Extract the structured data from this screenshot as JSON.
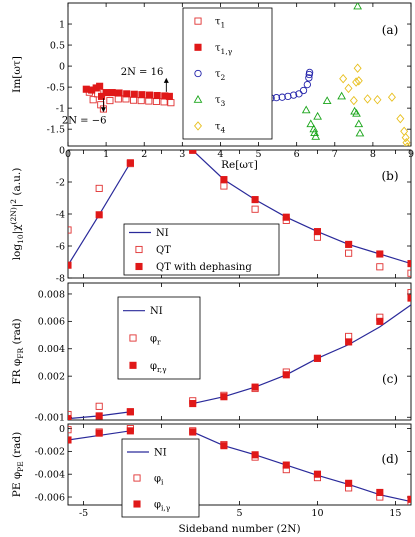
{
  "chart_data": [
    {
      "id": "a",
      "type": "scatter",
      "panel_label": "(a)",
      "xlabel": "Re[ωτ]",
      "ylabel": "Im[ωτ]",
      "xlim": [
        0,
        9
      ],
      "ylim": [
        -1.9,
        1.5
      ],
      "xticks": [
        0,
        1,
        2,
        3,
        4,
        5,
        6,
        7,
        8,
        9
      ],
      "xtick_labels": [
        "0",
        "1",
        "2",
        "3",
        "4",
        "5",
        "6",
        "7",
        "8",
        "9"
      ],
      "yticks": [
        -1.5,
        -1,
        -0.5,
        0,
        0.5,
        1
      ],
      "ytick_labels": [
        "-1.5",
        "-1",
        "-0.5",
        "0",
        "0.5",
        "1"
      ],
      "legend_position": "top-center",
      "annotations": [
        {
          "text": "2N = 16",
          "x": 2.58,
          "y": -0.28,
          "arrow": "up"
        },
        {
          "text": "2N = −6",
          "x": 0.93,
          "y": -1.05,
          "arrow": "down"
        }
      ],
      "series": [
        {
          "name": "τ1",
          "marker": "square-open",
          "color": "#e03030",
          "points": [
            [
              0.56,
              -0.62
            ],
            [
              0.66,
              -0.8
            ],
            [
              0.78,
              -0.66
            ],
            [
              0.86,
              -0.92
            ],
            [
              0.93,
              -1.02
            ],
            [
              1.1,
              -0.82
            ],
            [
              1.32,
              -0.78
            ],
            [
              1.52,
              -0.78
            ],
            [
              1.72,
              -0.81
            ],
            [
              1.92,
              -0.82
            ],
            [
              2.12,
              -0.83
            ],
            [
              2.32,
              -0.84
            ],
            [
              2.52,
              -0.85
            ],
            [
              2.7,
              -0.87
            ]
          ]
        },
        {
          "name": "τ1,γ",
          "marker": "square-filled",
          "color": "#e01818",
          "points": [
            [
              0.48,
              -0.55
            ],
            [
              0.62,
              -0.57
            ],
            [
              0.74,
              -0.52
            ],
            [
              0.83,
              -0.48
            ],
            [
              0.88,
              -0.72
            ],
            [
              1.0,
              -0.63
            ],
            [
              1.16,
              -0.63
            ],
            [
              1.34,
              -0.64
            ],
            [
              1.54,
              -0.66
            ],
            [
              1.74,
              -0.67
            ],
            [
              1.94,
              -0.68
            ],
            [
              2.14,
              -0.69
            ],
            [
              2.34,
              -0.7
            ],
            [
              2.54,
              -0.71
            ],
            [
              2.66,
              -0.72
            ]
          ]
        },
        {
          "name": "τ2",
          "marker": "circle-open",
          "color": "#2222aa",
          "points": [
            [
              5.33,
              -0.76
            ],
            [
              5.47,
              -0.75
            ],
            [
              5.62,
              -0.74
            ],
            [
              5.77,
              -0.72
            ],
            [
              5.92,
              -0.69
            ],
            [
              6.06,
              -0.66
            ],
            [
              6.18,
              -0.58
            ],
            [
              6.28,
              -0.44
            ],
            [
              6.32,
              -0.28
            ],
            [
              6.33,
              -0.2
            ],
            [
              6.34,
              -0.15
            ]
          ]
        },
        {
          "name": "τ3",
          "marker": "triangle-open",
          "color": "#1aa51a",
          "points": [
            [
              6.25,
              -1.05
            ],
            [
              6.37,
              -1.38
            ],
            [
              6.45,
              -1.5
            ],
            [
              6.47,
              -1.59
            ],
            [
              6.5,
              -1.68
            ],
            [
              6.55,
              -1.2
            ],
            [
              6.8,
              -0.83
            ],
            [
              7.18,
              -0.72
            ],
            [
              7.52,
              -1.08
            ],
            [
              7.57,
              -1.13
            ],
            [
              7.63,
              -1.38
            ],
            [
              7.66,
              -1.6
            ],
            [
              7.6,
              1.42
            ]
          ]
        },
        {
          "name": "τ4",
          "marker": "diamond-open",
          "color": "#e8c020",
          "points": [
            [
              7.22,
              -0.3
            ],
            [
              7.36,
              -0.53
            ],
            [
              7.5,
              -0.82
            ],
            [
              7.56,
              -0.38
            ],
            [
              7.6,
              -0.05
            ],
            [
              7.63,
              -0.35
            ],
            [
              7.86,
              -0.78
            ],
            [
              8.12,
              -0.8
            ],
            [
              8.5,
              -0.74
            ],
            [
              8.72,
              -1.25
            ],
            [
              8.82,
              -1.55
            ],
            [
              8.86,
              -1.7
            ],
            [
              8.88,
              -1.82
            ],
            [
              8.9,
              -1.92
            ]
          ]
        }
      ]
    },
    {
      "id": "b",
      "type": "line",
      "panel_label": "(b)",
      "xlabel": "",
      "ylabel": "log10|χ(2N)|2 (a.u.)",
      "ylabel_parts": {
        "pre": "log",
        "sub": "10",
        "mid": "|χ",
        "sup": "(2N)",
        "post": "|",
        "sup2": "2",
        "tail": " (a.u.)"
      },
      "xlim": [
        -6,
        16
      ],
      "ylim": [
        -8,
        0
      ],
      "yticks": [
        -8,
        -6,
        -4,
        -2,
        0
      ],
      "ytick_labels": [
        "-8",
        "-6",
        "-4",
        "-2",
        "0"
      ],
      "legend_position": "bottom-center",
      "series": [
        {
          "name": "NI",
          "style": "line",
          "color": "#2a2a9a",
          "segments": [
            [
              [
                -6,
                -7.2
              ],
              [
                -4,
                -4.05
              ],
              [
                -2,
                -0.8
              ]
            ],
            [
              [
                2,
                -0.02
              ],
              [
                4,
                -1.85
              ],
              [
                6,
                -3.1
              ],
              [
                8,
                -4.2
              ],
              [
                10,
                -5.1
              ],
              [
                12,
                -5.9
              ],
              [
                14,
                -6.5
              ],
              [
                16,
                -7.1
              ]
            ]
          ]
        },
        {
          "name": "QT",
          "style": "square-open",
          "color": "#e03030",
          "points": [
            [
              -6,
              -5.0
            ],
            [
              -4,
              -2.4
            ],
            [
              -2,
              -0.85
            ],
            [
              2,
              0.0
            ],
            [
              4,
              -2.25
            ],
            [
              6,
              -3.7
            ],
            [
              8,
              -4.4
            ],
            [
              10,
              -5.45
            ],
            [
              12,
              -6.45
            ],
            [
              14,
              -7.3
            ],
            [
              16,
              -7.7
            ]
          ]
        },
        {
          "name": "QT with dephasing",
          "style": "square-filled",
          "color": "#e01818",
          "points": [
            [
              -6,
              -7.2
            ],
            [
              -4,
              -4.05
            ],
            [
              -2,
              -0.8
            ],
            [
              2,
              -0.02
            ],
            [
              4,
              -1.85
            ],
            [
              6,
              -3.1
            ],
            [
              8,
              -4.2
            ],
            [
              10,
              -5.1
            ],
            [
              12,
              -5.9
            ],
            [
              14,
              -6.5
            ],
            [
              16,
              -7.1
            ]
          ]
        }
      ]
    },
    {
      "id": "c",
      "type": "line",
      "panel_label": "(c)",
      "xlabel": "",
      "ylabel": "FR φFR (rad)",
      "ylabel_parts": {
        "pre": "FR φ",
        "sub": "FR",
        "post": " (rad)"
      },
      "xlim": [
        -6,
        16
      ],
      "ylim": [
        -0.0012,
        0.0088
      ],
      "yticks": [
        -0.001,
        0.002,
        0.004,
        0.006,
        0.008
      ],
      "ytick_labels": [
        "-0.001",
        "0.002",
        "0.004",
        "0.006",
        "0.008"
      ],
      "legend_position": "top-left",
      "series": [
        {
          "name": "NI",
          "style": "line",
          "color": "#2a2a9a",
          "segments": [
            [
              [
                -6,
                -0.0011
              ],
              [
                -4,
                -0.0009
              ],
              [
                -2,
                -0.0006
              ]
            ],
            [
              [
                2,
                0.0
              ],
              [
                4,
                0.0005
              ],
              [
                6,
                0.0012
              ],
              [
                8,
                0.0021
              ],
              [
                10,
                0.0033
              ],
              [
                12,
                0.0043
              ],
              [
                14,
                0.0056
              ],
              [
                16,
                0.0072
              ]
            ]
          ]
        },
        {
          "name": "φr",
          "style": "square-open",
          "color": "#e03030",
          "points": [
            [
              -6,
              -0.0008
            ],
            [
              -4,
              -0.0002
            ],
            [
              -2,
              -0.0006
            ],
            [
              2,
              0.0002
            ],
            [
              4,
              0.0006
            ],
            [
              6,
              0.0011
            ],
            [
              8,
              0.0023
            ],
            [
              10,
              0.0033
            ],
            [
              12,
              0.0049
            ],
            [
              14,
              0.0063
            ],
            [
              16,
              0.0081
            ]
          ]
        },
        {
          "name": "φr,γ",
          "style": "square-filled",
          "color": "#e01818",
          "points": [
            [
              -6,
              -0.0011
            ],
            [
              -4,
              -0.0009
            ],
            [
              -2,
              -0.0006
            ],
            [
              2,
              0.0
            ],
            [
              4,
              0.0005
            ],
            [
              6,
              0.0012
            ],
            [
              8,
              0.0021
            ],
            [
              10,
              0.0033
            ],
            [
              12,
              0.0045
            ],
            [
              14,
              0.006
            ],
            [
              16,
              0.0077
            ]
          ]
        }
      ]
    },
    {
      "id": "d",
      "type": "line",
      "panel_label": "(d)",
      "xlabel": "Sideband number (2N)",
      "ylabel": "PE φPE (rad)",
      "ylabel_parts": {
        "pre": "PE φ",
        "sub": "PE",
        "post": " (rad)"
      },
      "xlim": [
        -6,
        16
      ],
      "ylim": [
        -0.0067,
        0.0004
      ],
      "xticks": [
        -5,
        0,
        5,
        10,
        15
      ],
      "xtick_labels": [
        "-5",
        "0",
        "5",
        "10",
        "15"
      ],
      "yticks": [
        -0.006,
        -0.004,
        -0.002,
        0
      ],
      "ytick_labels": [
        "-0.006",
        "-0.004",
        "-0.002",
        "0"
      ],
      "legend_position": "center-left",
      "series": [
        {
          "name": "NI",
          "style": "line",
          "color": "#2a2a9a",
          "segments": [
            [
              [
                -6,
                -0.001
              ],
              [
                -4,
                -0.0006
              ],
              [
                -2,
                -0.0002
              ]
            ],
            [
              [
                2,
                -0.0003
              ],
              [
                4,
                -0.0015
              ],
              [
                6,
                -0.0023
              ],
              [
                8,
                -0.0032
              ],
              [
                10,
                -0.0041
              ],
              [
                12,
                -0.0049
              ],
              [
                14,
                -0.0058
              ],
              [
                16,
                -0.0064
              ]
            ]
          ]
        },
        {
          "name": "φi",
          "style": "square-open",
          "color": "#e03030",
          "points": [
            [
              -6,
              -0.0001
            ],
            [
              -4,
              -0.0003
            ],
            [
              -2,
              0.0
            ],
            [
              2,
              -0.0002
            ],
            [
              4,
              -0.0014
            ],
            [
              6,
              -0.0025
            ],
            [
              8,
              -0.0036
            ],
            [
              10,
              -0.0043
            ],
            [
              12,
              -0.0052
            ],
            [
              14,
              -0.006
            ],
            [
              16,
              -0.0066
            ]
          ]
        },
        {
          "name": "φi,γ",
          "style": "square-filled",
          "color": "#e01818",
          "points": [
            [
              -6,
              -0.001
            ],
            [
              -4,
              -0.0004
            ],
            [
              -2,
              -0.0002
            ],
            [
              2,
              -0.0003
            ],
            [
              4,
              -0.0015
            ],
            [
              6,
              -0.0023
            ],
            [
              8,
              -0.0032
            ],
            [
              10,
              -0.004
            ],
            [
              12,
              -0.0048
            ],
            [
              14,
              -0.0056
            ],
            [
              16,
              -0.0062
            ]
          ]
        }
      ]
    }
  ]
}
